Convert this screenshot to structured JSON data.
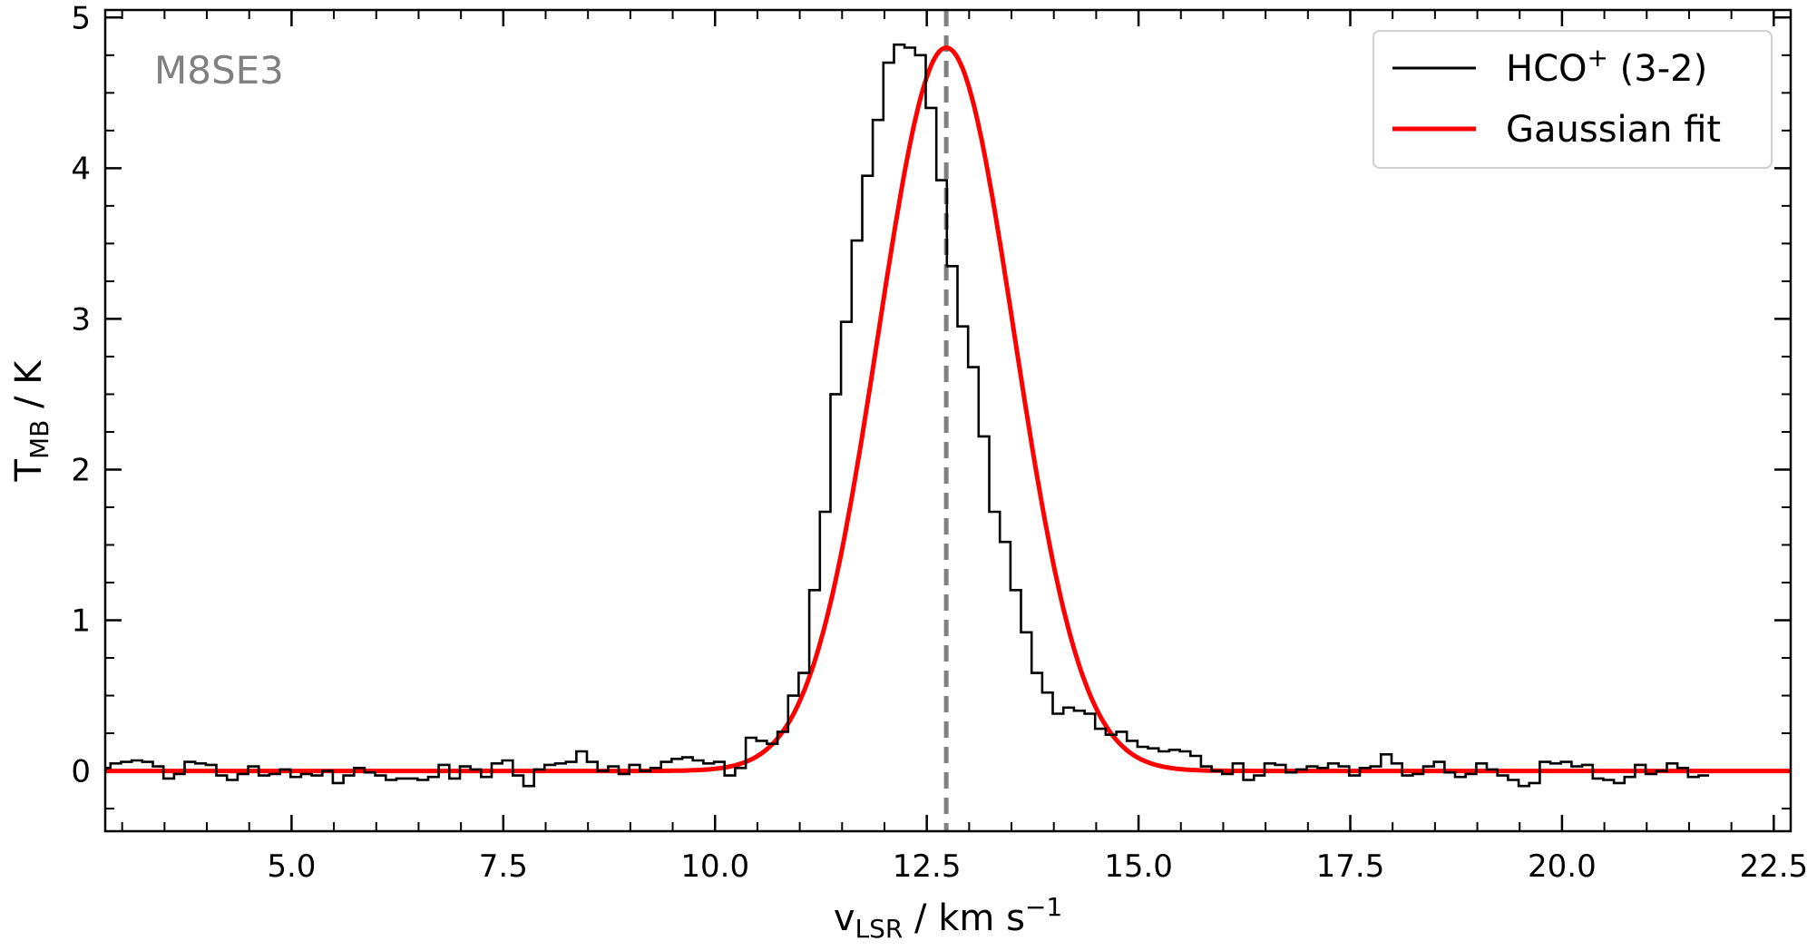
{
  "chart_data": {
    "type": "line",
    "source_label": "M8SE3",
    "xlabel": {
      "main": "v",
      "sub": "LSR",
      "rest": " / km s",
      "sup": "−1"
    },
    "ylabel": {
      "main": "T",
      "sub": "MB",
      "rest": " / K"
    },
    "xlim": [
      2.8,
      22.7
    ],
    "ylim": [
      -0.4,
      5.05
    ],
    "xticks_major": [
      5.0,
      7.5,
      10.0,
      12.5,
      15.0,
      17.5,
      20.0,
      22.5
    ],
    "xtick_labels": [
      "5.0",
      "7.5",
      "10.0",
      "12.5",
      "15.0",
      "17.5",
      "20.0",
      "22.5"
    ],
    "yticks_major": [
      0,
      1,
      2,
      3,
      4,
      5
    ],
    "ytick_labels": [
      "0",
      "1",
      "2",
      "3",
      "4",
      "5"
    ],
    "legend": {
      "position": "top-right",
      "entries": [
        {
          "label": "HCO",
          "sup": "+",
          "suffix": " (3-2)",
          "color": "#000000"
        },
        {
          "label": "Gaussian fit",
          "sup": "",
          "suffix": "",
          "color": "#ff0000"
        }
      ]
    },
    "marker_line": {
      "x": 12.73,
      "color": "#808080",
      "style": "dashed"
    },
    "series": [
      {
        "name": "HCO+ (3-2)",
        "style": "steps-mid",
        "color": "#000000",
        "x_start": 2.8,
        "x_step": 0.125,
        "values": [
          0.02,
          0.05,
          0.06,
          0.07,
          0.06,
          0.03,
          -0.05,
          -0.02,
          0.06,
          0.05,
          0.04,
          -0.03,
          -0.06,
          -0.02,
          0.03,
          -0.03,
          -0.02,
          0.01,
          -0.04,
          -0.02,
          -0.03,
          0.0,
          -0.08,
          -0.03,
          0.02,
          -0.01,
          -0.03,
          -0.06,
          -0.05,
          -0.05,
          -0.06,
          -0.04,
          0.04,
          -0.05,
          0.03,
          0.01,
          -0.04,
          0.05,
          0.07,
          -0.03,
          -0.1,
          0.01,
          0.04,
          0.05,
          0.06,
          0.13,
          0.06,
          0.0,
          0.03,
          -0.02,
          0.04,
          0.0,
          0.02,
          0.06,
          0.08,
          0.09,
          0.07,
          0.05,
          0.06,
          -0.03,
          0.02,
          0.22,
          0.2,
          0.18,
          0.26,
          0.5,
          0.65,
          1.2,
          1.72,
          2.5,
          2.98,
          3.52,
          3.95,
          4.32,
          4.7,
          4.82,
          4.8,
          4.75,
          4.4,
          3.92,
          3.35,
          2.95,
          2.68,
          2.22,
          1.72,
          1.52,
          1.2,
          0.92,
          0.65,
          0.52,
          0.38,
          0.42,
          0.4,
          0.38,
          0.28,
          0.24,
          0.26,
          0.2,
          0.16,
          0.15,
          0.13,
          0.14,
          0.13,
          0.1,
          0.03,
          0.0,
          -0.02,
          0.05,
          -0.06,
          -0.03,
          0.05,
          0.04,
          -0.01,
          0.01,
          0.03,
          0.02,
          0.05,
          0.03,
          -0.03,
          0.02,
          0.03,
          0.11,
          0.05,
          -0.03,
          -0.02,
          0.03,
          0.06,
          -0.01,
          -0.04,
          -0.02,
          0.05,
          0.01,
          -0.03,
          -0.06,
          -0.1,
          -0.08,
          0.06,
          0.05,
          0.06,
          0.03,
          0.04,
          -0.05,
          -0.06,
          -0.08,
          -0.04,
          0.04,
          -0.02,
          0.0,
          0.05,
          0.02,
          -0.04,
          -0.03
        ]
      },
      {
        "name": "Gaussian fit",
        "style": "line",
        "color": "#ff0000",
        "model": "gaussian",
        "amplitude": 4.8,
        "center": 12.73,
        "sigma": 0.8
      }
    ]
  }
}
